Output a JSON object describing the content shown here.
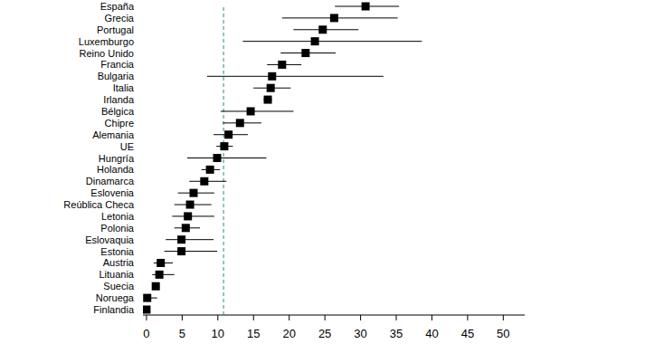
{
  "chart_data": {
    "type": "errorbar",
    "orientation": "horizontal",
    "marker": "square",
    "color": "#000000",
    "categories": [
      "España",
      "Grecia",
      "Portugal",
      "Luxemburgo",
      "Reino Unido",
      "Francia",
      "Bulgaria",
      "Italia",
      "Irlanda",
      "Bélgica",
      "Chipre",
      "Alemania",
      "UE",
      "Hungría",
      "Holanda",
      "Dinamarca",
      "Eslovenia",
      "Reública Checa",
      "Letonia",
      "Polonia",
      "Eslovaquia",
      "Estonia",
      "Austria",
      "Lituania",
      "Suecia",
      "Noruega",
      "Finlandia"
    ],
    "values": [
      30.7,
      26.3,
      24.7,
      23.6,
      22.3,
      19.0,
      17.6,
      17.4,
      17.0,
      14.6,
      13.1,
      11.5,
      10.9,
      9.9,
      8.9,
      8.1,
      6.6,
      6.1,
      5.8,
      5.5,
      4.9,
      4.9,
      2.0,
      1.8,
      1.3,
      0.1,
      0
    ],
    "low": [
      26.4,
      19.0,
      20.6,
      13.5,
      18.8,
      16.9,
      8.5,
      15.0,
      16.4,
      10.4,
      10.7,
      9.4,
      9.8,
      5.7,
      7.7,
      6.0,
      4.4,
      3.9,
      3.6,
      3.9,
      2.7,
      2.5,
      1.0,
      0.8,
      0.8,
      0,
      0
    ],
    "high": [
      35.4,
      35.2,
      29.7,
      38.6,
      26.5,
      21.7,
      33.2,
      20.2,
      17.6,
      20.6,
      16.1,
      14.2,
      12.1,
      16.8,
      10.3,
      11.2,
      9.5,
      9.1,
      9.5,
      7.5,
      9.4,
      9.9,
      3.7,
      3.9,
      1.8,
      1.5,
      0
    ],
    "reference_line": 10.8,
    "reference_line_color": "#2a8a8a",
    "xlim": [
      -0.5,
      53
    ],
    "xticks": [
      0,
      5,
      10,
      15,
      20,
      25,
      30,
      35,
      40,
      45,
      50
    ],
    "grid": false
  }
}
